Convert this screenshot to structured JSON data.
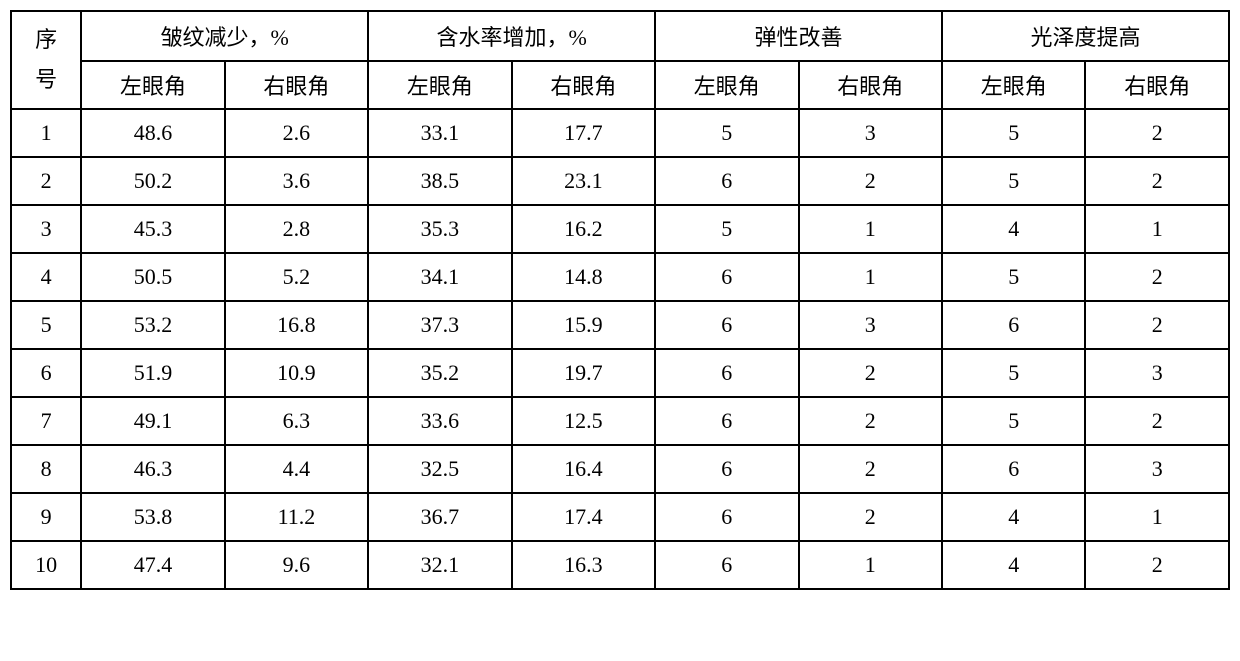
{
  "table": {
    "seq_header": "序\n号",
    "group_headers": [
      "皱纹减少，%",
      "含水率增加，%",
      "弹性改善",
      "光泽度提高"
    ],
    "sub_headers": [
      "左眼角",
      "右眼角",
      "左眼角",
      "右眼角",
      "左眼角",
      "右眼角",
      "左眼角",
      "右眼角"
    ],
    "rows": [
      {
        "seq": "1",
        "cells": [
          "48.6",
          "2.6",
          "33.1",
          "17.7",
          "5",
          "3",
          "5",
          "2"
        ]
      },
      {
        "seq": "2",
        "cells": [
          "50.2",
          "3.6",
          "38.5",
          "23.1",
          "6",
          "2",
          "5",
          "2"
        ]
      },
      {
        "seq": "3",
        "cells": [
          "45.3",
          "2.8",
          "35.3",
          "16.2",
          "5",
          "1",
          "4",
          "1"
        ]
      },
      {
        "seq": "4",
        "cells": [
          "50.5",
          "5.2",
          "34.1",
          "14.8",
          "6",
          "1",
          "5",
          "2"
        ]
      },
      {
        "seq": "5",
        "cells": [
          "53.2",
          "16.8",
          "37.3",
          "15.9",
          "6",
          "3",
          "6",
          "2"
        ]
      },
      {
        "seq": "6",
        "cells": [
          "51.9",
          "10.9",
          "35.2",
          "19.7",
          "6",
          "2",
          "5",
          "3"
        ]
      },
      {
        "seq": "7",
        "cells": [
          "49.1",
          "6.3",
          "33.6",
          "12.5",
          "6",
          "2",
          "5",
          "2"
        ]
      },
      {
        "seq": "8",
        "cells": [
          "46.3",
          "4.4",
          "32.5",
          "16.4",
          "6",
          "2",
          "6",
          "3"
        ]
      },
      {
        "seq": "9",
        "cells": [
          "53.8",
          "11.2",
          "36.7",
          "17.4",
          "6",
          "2",
          "4",
          "1"
        ]
      },
      {
        "seq": "10",
        "cells": [
          "47.4",
          "9.6",
          "32.1",
          "16.3",
          "6",
          "1",
          "4",
          "2"
        ]
      }
    ],
    "border_color": "#000000",
    "background_color": "#ffffff",
    "text_color": "#000000",
    "font_size": 22
  }
}
